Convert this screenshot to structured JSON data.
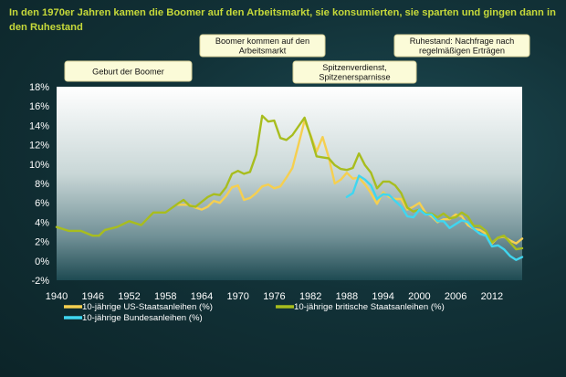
{
  "title": "In den 1970er Jahren kamen die Boomer auf den Arbeitsmarkt, sie konsumierten, sie sparten und gingen dann in den Ruhestand",
  "colors": {
    "us": "#f5cf50",
    "uk": "#a8bd1e",
    "de": "#3fd6f0",
    "annotation_bg": "#fbfbd8",
    "annotation_border": "#d9d29a"
  },
  "annotations": [
    {
      "lines": [
        "Geburt der Boomer"
      ]
    },
    {
      "lines": [
        "Boomer kommen auf den",
        "Arbeitsmarkt"
      ]
    },
    {
      "lines": [
        "Spitzenverdienst,",
        "Spitzenersparnisse"
      ]
    },
    {
      "lines": [
        "Ruhestand: Nachfrage nach",
        "regelmäßigen Erträgen"
      ]
    }
  ],
  "chart_data": {
    "type": "line",
    "title": "",
    "xlabel": "",
    "ylabel": "",
    "xlim": [
      1940,
      2017
    ],
    "ylim": [
      -2,
      18
    ],
    "x_ticks": [
      1940,
      1946,
      1952,
      1958,
      1964,
      1970,
      1976,
      1982,
      1988,
      1994,
      2000,
      2006,
      2012
    ],
    "y_ticks": [
      -2,
      0,
      2,
      4,
      6,
      8,
      10,
      12,
      14,
      16,
      18
    ],
    "y_tick_suffix": "%",
    "grid": false,
    "legend_position": "bottom",
    "series": [
      {
        "name": "10-jährige US-Staatsanleihen (%)",
        "points": [
          [
            1960,
            5.8
          ],
          [
            1962,
            5.8
          ],
          [
            1963,
            5.5
          ],
          [
            1964,
            5.3
          ],
          [
            1965,
            5.6
          ],
          [
            1966,
            6.2
          ],
          [
            1967,
            6.0
          ],
          [
            1968,
            6.7
          ],
          [
            1969,
            7.6
          ],
          [
            1970,
            7.8
          ],
          [
            1971,
            6.3
          ],
          [
            1972,
            6.5
          ],
          [
            1973,
            7.0
          ],
          [
            1974,
            7.7
          ],
          [
            1975,
            7.9
          ],
          [
            1976,
            7.5
          ],
          [
            1977,
            7.7
          ],
          [
            1978,
            8.6
          ],
          [
            1979,
            9.6
          ],
          [
            1980,
            12.0
          ],
          [
            1981,
            14.5
          ],
          [
            1982,
            13.0
          ],
          [
            1983,
            11.3
          ],
          [
            1984,
            12.8
          ],
          [
            1985,
            10.7
          ],
          [
            1986,
            8.0
          ],
          [
            1987,
            8.4
          ],
          [
            1988,
            9.1
          ],
          [
            1989,
            8.5
          ],
          [
            1990,
            8.6
          ],
          [
            1991,
            7.9
          ],
          [
            1992,
            7.0
          ],
          [
            1993,
            5.9
          ],
          [
            1994,
            7.1
          ],
          [
            1995,
            6.6
          ],
          [
            1996,
            6.4
          ],
          [
            1997,
            6.4
          ],
          [
            1998,
            5.3
          ],
          [
            1999,
            5.6
          ],
          [
            2000,
            6.0
          ],
          [
            2001,
            5.0
          ],
          [
            2002,
            4.6
          ],
          [
            2003,
            4.0
          ],
          [
            2004,
            4.3
          ],
          [
            2005,
            4.3
          ],
          [
            2006,
            4.8
          ],
          [
            2007,
            4.6
          ],
          [
            2008,
            3.7
          ],
          [
            2009,
            3.3
          ],
          [
            2010,
            3.2
          ],
          [
            2011,
            2.8
          ],
          [
            2012,
            1.8
          ],
          [
            2013,
            2.4
          ],
          [
            2014,
            2.5
          ],
          [
            2015,
            2.1
          ],
          [
            2016,
            1.8
          ],
          [
            2017,
            2.3
          ]
        ]
      },
      {
        "name": "10-jährige britische Staatsanleihen (%)",
        "points": [
          [
            1940,
            3.5
          ],
          [
            1942,
            3.1
          ],
          [
            1944,
            3.1
          ],
          [
            1946,
            2.6
          ],
          [
            1947,
            2.6
          ],
          [
            1948,
            3.2
          ],
          [
            1950,
            3.5
          ],
          [
            1952,
            4.1
          ],
          [
            1954,
            3.7
          ],
          [
            1956,
            5.0
          ],
          [
            1958,
            5.0
          ],
          [
            1960,
            5.9
          ],
          [
            1961,
            6.3
          ],
          [
            1962,
            5.7
          ],
          [
            1963,
            5.6
          ],
          [
            1964,
            6.1
          ],
          [
            1965,
            6.6
          ],
          [
            1966,
            6.9
          ],
          [
            1967,
            6.8
          ],
          [
            1968,
            7.6
          ],
          [
            1969,
            9.0
          ],
          [
            1970,
            9.3
          ],
          [
            1971,
            9.0
          ],
          [
            1972,
            9.2
          ],
          [
            1973,
            11.0
          ],
          [
            1974,
            15.0
          ],
          [
            1975,
            14.4
          ],
          [
            1976,
            14.5
          ],
          [
            1977,
            12.7
          ],
          [
            1978,
            12.5
          ],
          [
            1979,
            13.0
          ],
          [
            1980,
            13.9
          ],
          [
            1981,
            14.8
          ],
          [
            1982,
            12.9
          ],
          [
            1983,
            10.8
          ],
          [
            1984,
            10.7
          ],
          [
            1985,
            10.6
          ],
          [
            1986,
            9.9
          ],
          [
            1987,
            9.5
          ],
          [
            1988,
            9.4
          ],
          [
            1989,
            9.6
          ],
          [
            1990,
            11.1
          ],
          [
            1991,
            9.9
          ],
          [
            1992,
            9.1
          ],
          [
            1993,
            7.5
          ],
          [
            1994,
            8.2
          ],
          [
            1995,
            8.2
          ],
          [
            1996,
            7.8
          ],
          [
            1997,
            7.0
          ],
          [
            1998,
            5.5
          ],
          [
            1999,
            5.1
          ],
          [
            2000,
            5.3
          ],
          [
            2001,
            4.9
          ],
          [
            2002,
            4.9
          ],
          [
            2003,
            4.5
          ],
          [
            2004,
            4.9
          ],
          [
            2005,
            4.4
          ],
          [
            2006,
            4.5
          ],
          [
            2007,
            5.0
          ],
          [
            2008,
            4.6
          ],
          [
            2009,
            3.6
          ],
          [
            2010,
            3.6
          ],
          [
            2011,
            3.1
          ],
          [
            2012,
            1.9
          ],
          [
            2013,
            2.4
          ],
          [
            2014,
            2.6
          ],
          [
            2015,
            1.9
          ],
          [
            2016,
            1.2
          ],
          [
            2017,
            1.3
          ]
        ]
      },
      {
        "name": "10-jährige Bundesanleihen (%)",
        "points": [
          [
            1988,
            6.6
          ],
          [
            1989,
            7.0
          ],
          [
            1990,
            8.8
          ],
          [
            1991,
            8.4
          ],
          [
            1992,
            7.8
          ],
          [
            1993,
            6.4
          ],
          [
            1994,
            6.9
          ],
          [
            1995,
            6.8
          ],
          [
            1996,
            6.2
          ],
          [
            1997,
            5.6
          ],
          [
            1998,
            4.6
          ],
          [
            1999,
            4.5
          ],
          [
            2000,
            5.3
          ],
          [
            2001,
            4.8
          ],
          [
            2002,
            4.8
          ],
          [
            2003,
            4.1
          ],
          [
            2004,
            4.1
          ],
          [
            2005,
            3.4
          ],
          [
            2006,
            3.8
          ],
          [
            2007,
            4.2
          ],
          [
            2008,
            4.0
          ],
          [
            2009,
            3.3
          ],
          [
            2010,
            2.8
          ],
          [
            2011,
            2.6
          ],
          [
            2012,
            1.5
          ],
          [
            2013,
            1.6
          ],
          [
            2014,
            1.2
          ],
          [
            2015,
            0.5
          ],
          [
            2016,
            0.1
          ],
          [
            2017,
            0.4
          ]
        ]
      }
    ]
  }
}
